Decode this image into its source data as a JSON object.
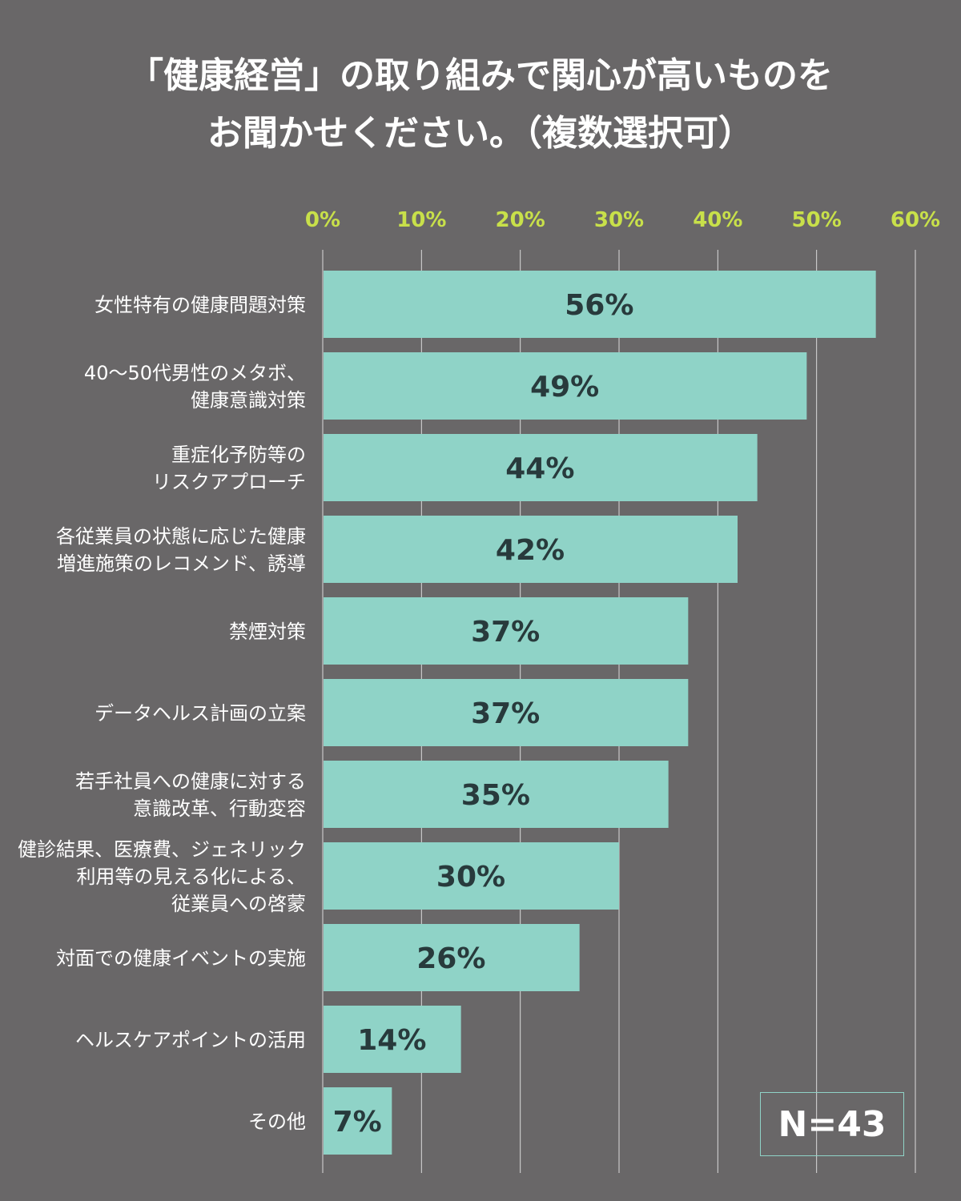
{
  "title": {
    "line1": "「健康経営」の取り組みで関心が高いものを",
    "line2": "お聞かせください。（複数選択可）"
  },
  "sample_size": "N=43",
  "colors": {
    "background": "#696768",
    "bar": "#8fd3c7",
    "bar_label": "#283a3c",
    "tick_label": "#c8e04a",
    "grid": "#eeeeee",
    "title": "#ffffff"
  },
  "chart_data": {
    "type": "bar",
    "orientation": "horizontal",
    "title": "「健康経営」の取り組みで関心が高いものを お聞かせください。（複数選択可）",
    "x_ticks": [
      "0%",
      "10%",
      "20%",
      "30%",
      "40%",
      "50%",
      "60%"
    ],
    "xlim": [
      0,
      60
    ],
    "unit": "%",
    "categories": [
      [
        "女性特有の健康問題対策"
      ],
      [
        "40〜50代男性のメタボ、",
        "健康意識対策"
      ],
      [
        "重症化予防等の",
        "リスクアプローチ"
      ],
      [
        "各従業員の状態に応じた健康",
        "増進施策のレコメンド、誘導"
      ],
      [
        "禁煙対策"
      ],
      [
        "データヘルス計画の立案"
      ],
      [
        "若手社員への健康に対する",
        "意識改革、行動変容"
      ],
      [
        "健診結果、医療費、ジェネリック",
        "利用等の見える化による、",
        "従業員への啓蒙"
      ],
      [
        "対面での健康イベントの実施"
      ],
      [
        "ヘルスケアポイントの活用"
      ],
      [
        "その他"
      ]
    ],
    "values": [
      56,
      49,
      44,
      42,
      37,
      37,
      35,
      30,
      26,
      14,
      7
    ],
    "value_labels": [
      "56%",
      "49%",
      "44%",
      "42%",
      "37%",
      "37%",
      "35%",
      "30%",
      "26%",
      "14%",
      "7%"
    ],
    "legend": "none",
    "grid": true
  }
}
